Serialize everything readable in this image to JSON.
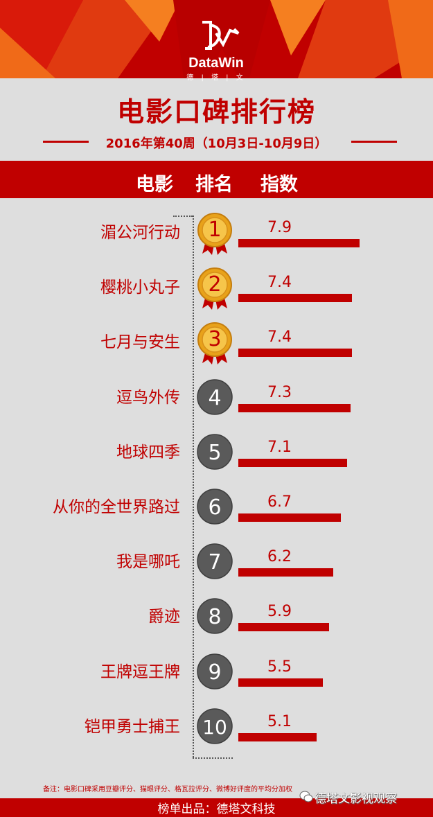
{
  "brand": {
    "name": "DataWin",
    "sub": "德 | 塔 | 文"
  },
  "title": "电影口碑排行榜",
  "subtitle": "2016年第40周（10月3日-10月9日）",
  "columns": {
    "movie": "电影",
    "rank": "排名",
    "index": "指数"
  },
  "footnote": "备注：电影口碑采用豆瓣评分、猫眼评分、格瓦拉评分、微博好评度的平均分加权",
  "watermark": "德塔文影视观察",
  "footer": "榜单出品：德塔文科技",
  "colors": {
    "accent": "#c00000",
    "gold": "#e8a21a",
    "badge_gray": "#5a5a5a",
    "background": "#dedede"
  },
  "chart_data": {
    "type": "bar",
    "title": "电影口碑排行榜",
    "subtitle": "2016年第40周（10月3日-10月9日）",
    "categories": [
      "湄公河行动",
      "樱桃小丸子",
      "七月与安生",
      "逗鸟外传",
      "地球四季",
      "从你的全世界路过",
      "我是哪吒",
      "爵迹",
      "王牌逗王牌",
      "铠甲勇士捕王"
    ],
    "ranks": [
      "1",
      "2",
      "3",
      "4",
      "5",
      "6",
      "7",
      "8",
      "9",
      "10"
    ],
    "values": [
      7.9,
      7.4,
      7.4,
      7.3,
      7.1,
      6.7,
      6.2,
      5.9,
      5.5,
      5.1
    ],
    "value_labels": [
      "7.9",
      "7.4",
      "7.4",
      "7.3",
      "7.1",
      "6.7",
      "6.2",
      "5.9",
      "5.5",
      "5.1"
    ],
    "orientation": "horizontal",
    "grid": false
  }
}
